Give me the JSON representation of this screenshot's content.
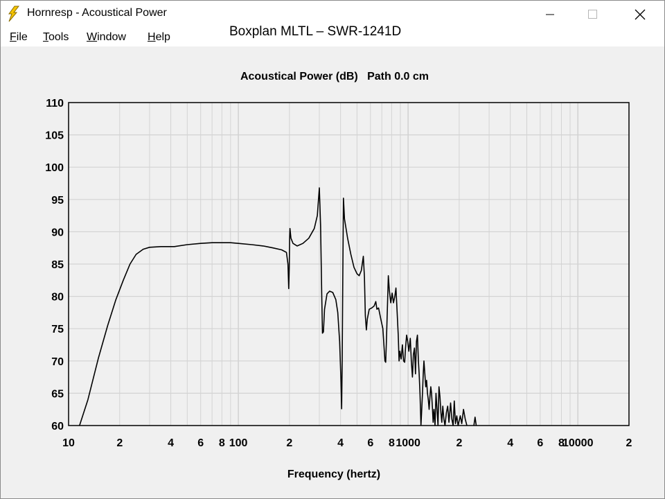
{
  "window": {
    "title": "Hornresp - Acoustical Power",
    "icons": {
      "app": "lightning-icon",
      "minimize": "minimize-icon",
      "maximize": "maximize-icon",
      "close": "close-icon"
    }
  },
  "menu": [
    {
      "underline": "F",
      "rest": "ile"
    },
    {
      "underline": "T",
      "rest": "ools"
    },
    {
      "underline": "W",
      "rest": "indow"
    },
    {
      "underline": "H",
      "rest": "elp"
    }
  ],
  "caption": "Boxplan MLTL – SWR-1241D",
  "chart_data": {
    "type": "line",
    "title": "Acoustical Power (dB)   Path 0.0 cm",
    "xlabel": "Frequency (hertz)",
    "ylabel": "",
    "x_scale": "log",
    "xlim": [
      10,
      20000
    ],
    "ylim": [
      60,
      110
    ],
    "y_ticks": [
      60,
      65,
      70,
      75,
      80,
      85,
      90,
      95,
      100,
      105,
      110
    ],
    "x_tick_labels": [
      {
        "x": 10,
        "label": "10"
      },
      {
        "x": 20,
        "label": "2"
      },
      {
        "x": 40,
        "label": "4"
      },
      {
        "x": 60,
        "label": "6"
      },
      {
        "x": 80,
        "label": "8"
      },
      {
        "x": 100,
        "label": "100"
      },
      {
        "x": 200,
        "label": "2"
      },
      {
        "x": 400,
        "label": "4"
      },
      {
        "x": 600,
        "label": "6"
      },
      {
        "x": 800,
        "label": "8"
      },
      {
        "x": 1000,
        "label": "1000"
      },
      {
        "x": 2000,
        "label": "2"
      },
      {
        "x": 4000,
        "label": "4"
      },
      {
        "x": 6000,
        "label": "6"
      },
      {
        "x": 8000,
        "label": "8"
      },
      {
        "x": 10000,
        "label": "10000"
      },
      {
        "x": 20000,
        "label": "2"
      }
    ],
    "grid": true,
    "line_color": "#000000",
    "grid_color": "#d3d3d3",
    "series": [
      {
        "values": [
          [
            11.6,
            60
          ],
          [
            13,
            64
          ],
          [
            15,
            70.5
          ],
          [
            17,
            75.5
          ],
          [
            19,
            79.5
          ],
          [
            21,
            82.5
          ],
          [
            23,
            85
          ],
          [
            25,
            86.5
          ],
          [
            27.5,
            87.3
          ],
          [
            30,
            87.6
          ],
          [
            35,
            87.7
          ],
          [
            42,
            87.7
          ],
          [
            50,
            88
          ],
          [
            60,
            88.2
          ],
          [
            70,
            88.3
          ],
          [
            80,
            88.3
          ],
          [
            90,
            88.3
          ],
          [
            100,
            88.2
          ],
          [
            120,
            88
          ],
          [
            140,
            87.8
          ],
          [
            160,
            87.5
          ],
          [
            180,
            87.2
          ],
          [
            192,
            86.8
          ],
          [
            196,
            85
          ],
          [
            198,
            81.2
          ],
          [
            199.5,
            84.5
          ],
          [
            200.5,
            89
          ],
          [
            201.5,
            90.5
          ],
          [
            204,
            89
          ],
          [
            210,
            88.2
          ],
          [
            222,
            87.8
          ],
          [
            240,
            88.2
          ],
          [
            260,
            89
          ],
          [
            280,
            90.5
          ],
          [
            292,
            92.5
          ],
          [
            300,
            96.8
          ],
          [
            305,
            91
          ],
          [
            310,
            80
          ],
          [
            313,
            74.3
          ],
          [
            317,
            74.5
          ],
          [
            322,
            78
          ],
          [
            333,
            80.4
          ],
          [
            345,
            80.8
          ],
          [
            360,
            80.6
          ],
          [
            375,
            79.5
          ],
          [
            385,
            77.5
          ],
          [
            395,
            73
          ],
          [
            402,
            67
          ],
          [
            406,
            62.6
          ],
          [
            409,
            70
          ],
          [
            412,
            82
          ],
          [
            416,
            95.2
          ],
          [
            422,
            92
          ],
          [
            440,
            89
          ],
          [
            460,
            86.5
          ],
          [
            480,
            84.5
          ],
          [
            500,
            83.5
          ],
          [
            515,
            83.2
          ],
          [
            530,
            84
          ],
          [
            545,
            86.2
          ],
          [
            553,
            83
          ],
          [
            560,
            77
          ],
          [
            568,
            74.8
          ],
          [
            575,
            76.5
          ],
          [
            590,
            78
          ],
          [
            610,
            78.2
          ],
          [
            630,
            78.5
          ],
          [
            645,
            79.2
          ],
          [
            655,
            78
          ],
          [
            670,
            78.2
          ],
          [
            690,
            76.5
          ],
          [
            710,
            75
          ],
          [
            730,
            70
          ],
          [
            738,
            69.8
          ],
          [
            745,
            73
          ],
          [
            755,
            78
          ],
          [
            765,
            83.2
          ],
          [
            775,
            81
          ],
          [
            790,
            79
          ],
          [
            805,
            80.5
          ],
          [
            820,
            79
          ],
          [
            835,
            80
          ],
          [
            848,
            81.3
          ],
          [
            860,
            78
          ],
          [
            875,
            74
          ],
          [
            885,
            70
          ],
          [
            895,
            71.5
          ],
          [
            910,
            70.3
          ],
          [
            925,
            72.5
          ],
          [
            940,
            70
          ],
          [
            955,
            69.8
          ],
          [
            965,
            72
          ],
          [
            980,
            74
          ],
          [
            995,
            73
          ],
          [
            1010,
            71.5
          ],
          [
            1030,
            73.5
          ],
          [
            1045,
            70
          ],
          [
            1060,
            67.5
          ],
          [
            1075,
            71
          ],
          [
            1090,
            72
          ],
          [
            1105,
            68
          ],
          [
            1120,
            73
          ],
          [
            1135,
            74
          ],
          [
            1150,
            70
          ],
          [
            1162,
            68
          ],
          [
            1175,
            65
          ],
          [
            1190,
            60
          ]
        ]
      },
      {
        "values": [
          [
            1190,
            60
          ],
          [
            1200,
            62
          ],
          [
            1215,
            65
          ],
          [
            1228,
            68
          ],
          [
            1240,
            70
          ],
          [
            1255,
            68
          ],
          [
            1270,
            66
          ],
          [
            1285,
            67
          ],
          [
            1300,
            65
          ],
          [
            1315,
            64
          ],
          [
            1330,
            62.5
          ],
          [
            1345,
            64.5
          ],
          [
            1360,
            66
          ],
          [
            1375,
            65
          ],
          [
            1390,
            62.8
          ],
          [
            1405,
            60.5
          ],
          [
            1420,
            62.5
          ],
          [
            1440,
            60
          ],
          [
            1460,
            65
          ],
          [
            1480,
            62.5
          ],
          [
            1500,
            60
          ],
          [
            1520,
            66
          ],
          [
            1540,
            64.5
          ],
          [
            1560,
            62
          ],
          [
            1580,
            60.5
          ],
          [
            1600,
            63
          ],
          [
            1625,
            61
          ],
          [
            1650,
            60
          ],
          [
            1680,
            62
          ],
          [
            1710,
            63
          ],
          [
            1740,
            60.5
          ],
          [
            1780,
            63.5
          ],
          [
            1810,
            61
          ],
          [
            1840,
            60
          ],
          [
            1870,
            63.8
          ],
          [
            1900,
            60.3
          ],
          [
            1935,
            61.5
          ],
          [
            1970,
            60
          ],
          [
            2030,
            61.5
          ],
          [
            2070,
            60.3
          ],
          [
            2120,
            62.5
          ],
          [
            2170,
            61
          ],
          [
            2220,
            60
          ]
        ]
      },
      {
        "values": [
          [
            2440,
            60
          ],
          [
            2480,
            61.3
          ],
          [
            2520,
            60
          ]
        ]
      }
    ]
  }
}
